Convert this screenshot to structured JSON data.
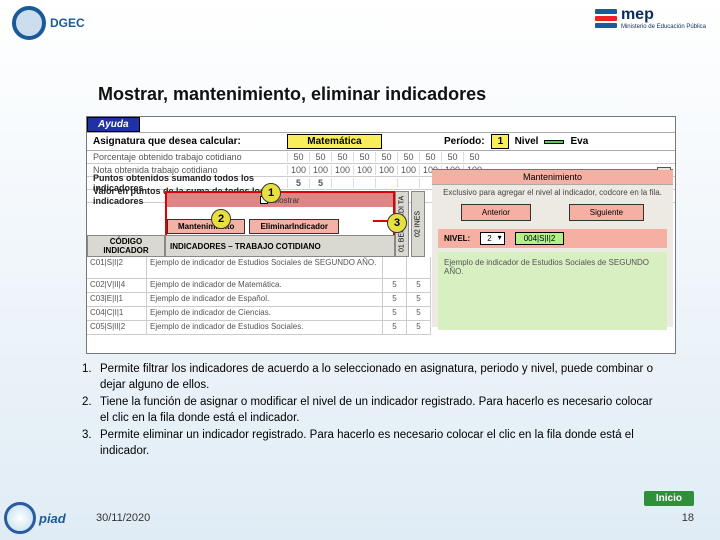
{
  "logos": {
    "dgec": "DGEC",
    "mep": "mep",
    "mep_sub": "Ministerio\nde Educación Pública",
    "piad": "piad"
  },
  "title": "Mostrar, mantenimiento, eliminar indicadores",
  "toolbar": {
    "ayuda": "Ayuda",
    "asignatura_lbl": "Asignatura que desea calcular:",
    "asignatura_val": "Matemática",
    "periodo_lbl": "Período:",
    "periodo_val": "1",
    "nivel_lbl": "Nivel",
    "eva_lbl": "Eva"
  },
  "greyrows": {
    "r1": {
      "lbl": "Porcentaje obtenido trabajo cotidiano",
      "vals": [
        "50",
        "50",
        "50",
        "50",
        "50",
        "50",
        "50",
        "50",
        "50"
      ]
    },
    "r2": {
      "lbl": "Nota obtenida trabajo cotidiano",
      "vals": [
        "100",
        "100",
        "100",
        "100",
        "100",
        "100",
        "100",
        "100",
        "100"
      ]
    },
    "r3": {
      "lbl": "Puntos obtenidos sumando todos los indicadores",
      "vals": [
        "5",
        "5",
        "",
        "",
        "",
        "",
        "",
        "",
        ""
      ]
    },
    "r4": {
      "lbl": "Valor en puntos de la suma de todos los indicadores",
      "vals": [
        "5",
        "5",
        "",
        "",
        "",
        "",
        "",
        "",
        ""
      ]
    }
  },
  "controls": {
    "mostrar": "Mostrar",
    "mantenimiento": "Mantenimiento",
    "eliminar": "EliminarIndicador"
  },
  "circles": {
    "c1": "1",
    "c2": "2",
    "c3": "3"
  },
  "headers": {
    "codigo1": "CÓDIGO",
    "codigo2": "INDICADOR",
    "ind": "INDICADORES – TRABAJO COTIDIANO",
    "v1": "01 BERNARDI TA",
    "v2": "02 INES"
  },
  "tablerows": [
    {
      "cod": "C01|S|I|2",
      "txt": "Ejemplo de indicador de Estudios Sociales de SEGUNDO AÑO.",
      "n1": "",
      "n2": ""
    },
    {
      "cod": "C02|V|II|4",
      "txt": "Ejemplo de indicador de Matemática.",
      "n1": "5",
      "n2": "5"
    },
    {
      "cod": "C03|E|I|1",
      "txt": "Ejemplo de indicador de Español.",
      "n1": "5",
      "n2": "5"
    },
    {
      "cod": "C04|C|I|1",
      "txt": "Ejemplo de indicador de Ciencias.",
      "n1": "5",
      "n2": "5"
    },
    {
      "cod": "C05|S|II|2",
      "txt": "Ejemplo de indicador de Estudios Sociales.",
      "n1": "5",
      "n2": "5"
    }
  ],
  "maint": {
    "title": "Mantenimiento",
    "sub": "Exclusivo para agregar el nivel al indicador, codcore en la fila.",
    "anterior": "Anterior",
    "siguiente": "Siguiente",
    "nivel_lbl": "NIVEL:",
    "nivel_sel": "2",
    "nivel_code": "004|S|I|2",
    "example": "Ejemplo de indicador de Estudios Sociales de SEGUNDO AÑO."
  },
  "notes": {
    "n1": "Permite filtrar los indicadores de acuerdo a lo seleccionado en asignatura, periodo y nivel, puede combinar o dejar alguno de ellos.",
    "n2": "Tiene la función de asignar o modificar el nivel de un indicador registrado. Para hacerlo es necesario colocar el clic en la fila donde está el indicador.",
    "n3": "Permite eliminar un indicador registrado. Para hacerlo es necesario colocar el clic en la fila donde está el indicador."
  },
  "footer": {
    "date": "30/11/2020",
    "page": "18",
    "inicio": "Inicio"
  }
}
